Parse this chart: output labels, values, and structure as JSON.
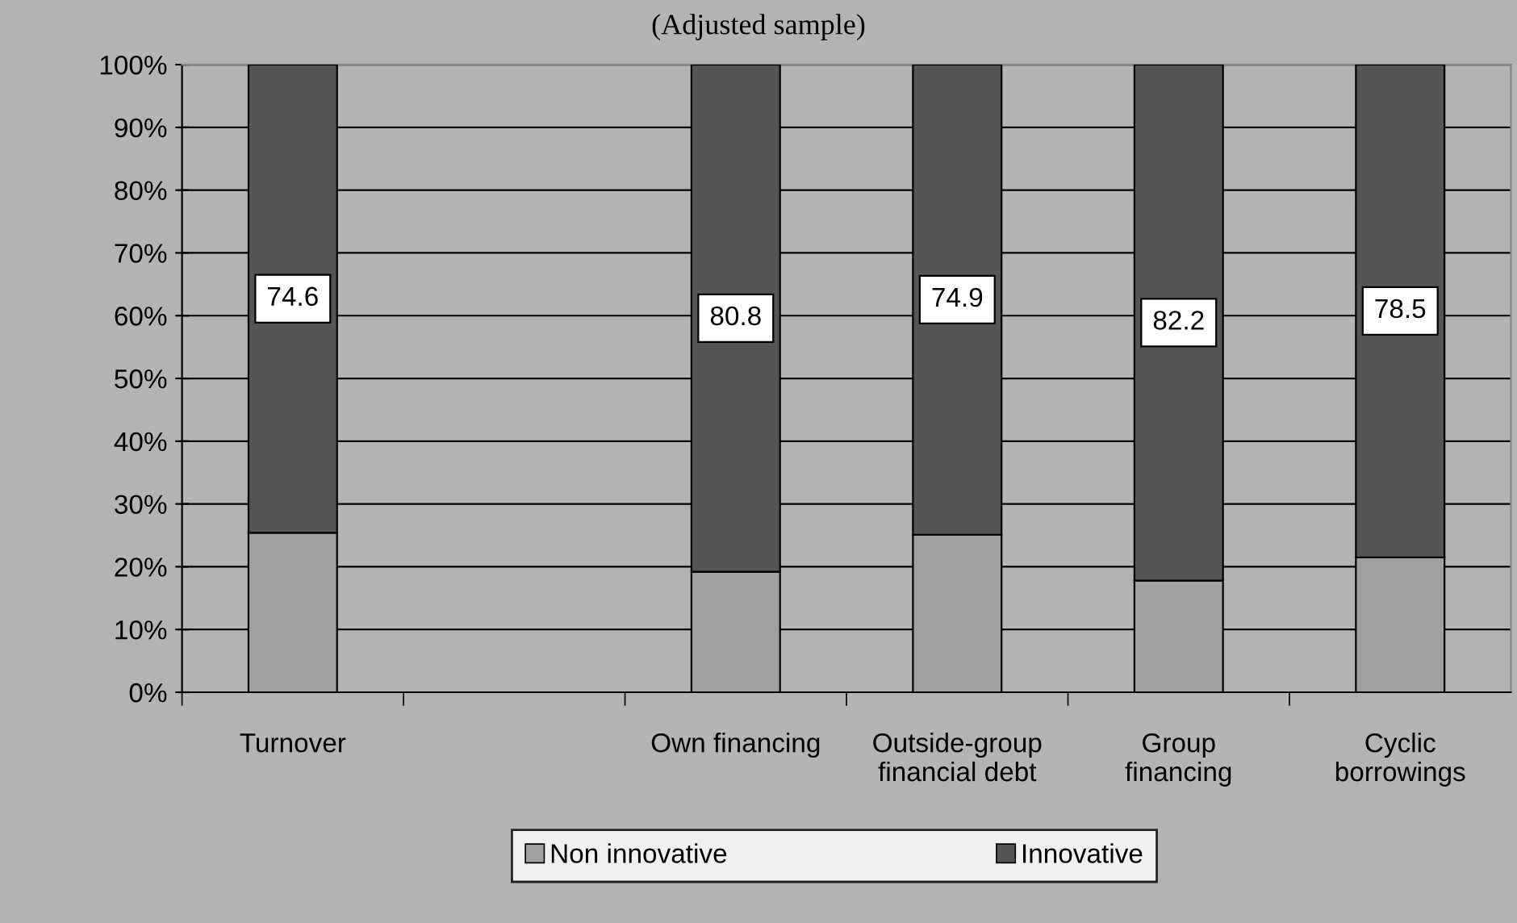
{
  "chart_data": {
    "type": "bar",
    "title": "(Adjusted sample)",
    "stacked": true,
    "categories": [
      "Turnover",
      null,
      "Own financing",
      "Outside-group\nfinancial debt",
      "Group\nfinancing",
      "Cyclic\nborrowings"
    ],
    "series": [
      {
        "name": "Non innovative",
        "color": "#a0a0a0",
        "values": [
          25.4,
          null,
          19.2,
          25.1,
          17.8,
          21.5
        ]
      },
      {
        "name": "Innovative",
        "color": "#555555",
        "values": [
          74.6,
          null,
          80.8,
          74.9,
          82.2,
          78.5
        ],
        "value_labels": [
          "74.6",
          null,
          "80.8",
          "74.9",
          "82.2",
          "78.5"
        ]
      }
    ],
    "ylim": [
      0,
      100
    ],
    "yticks": [
      {
        "value": 0,
        "label": "0%"
      },
      {
        "value": 10,
        "label": "10%"
      },
      {
        "value": 20,
        "label": "20%"
      },
      {
        "value": 30,
        "label": "30%"
      },
      {
        "value": 40,
        "label": "40%"
      },
      {
        "value": 50,
        "label": "50%"
      },
      {
        "value": 60,
        "label": "60%"
      },
      {
        "value": 70,
        "label": "70%"
      },
      {
        "value": 80,
        "label": "80%"
      },
      {
        "value": 90,
        "label": "90%"
      },
      {
        "value": 100,
        "label": "100%"
      }
    ],
    "grid": "y",
    "legend": "bottom"
  }
}
